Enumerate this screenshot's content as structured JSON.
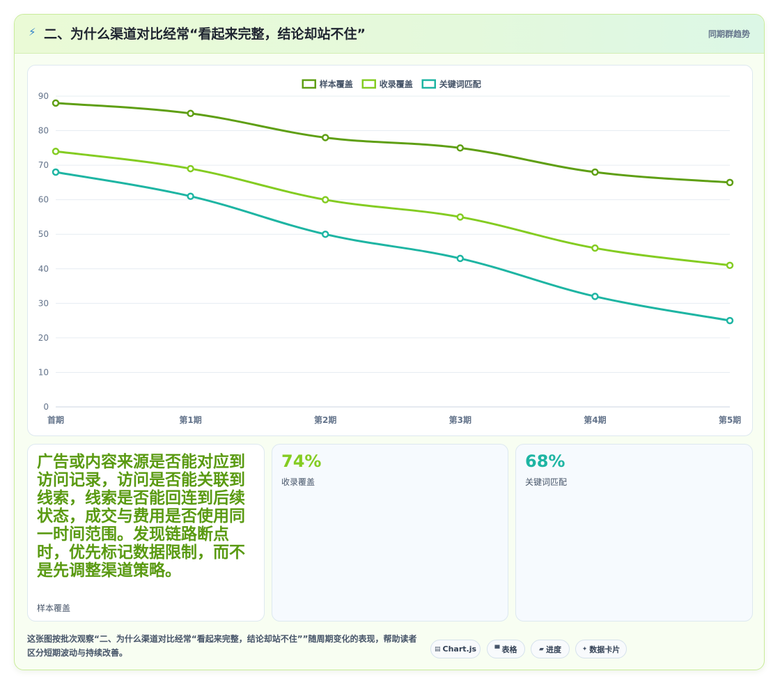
{
  "header": {
    "icon": "lightning-icon",
    "title": "二、为什么渠道对比经常“看起来完整，结论却站不住”",
    "tag": "同期群趋势"
  },
  "chart_data": {
    "type": "line",
    "categories": [
      "首期",
      "第1期",
      "第2期",
      "第3期",
      "第4期",
      "第5期"
    ],
    "series": [
      {
        "name": "样本覆盖",
        "color": "#5f9f14",
        "values": [
          88,
          85,
          78,
          75,
          68,
          65
        ]
      },
      {
        "name": "收录覆盖",
        "color": "#84cc22",
        "values": [
          74,
          69,
          60,
          55,
          46,
          41
        ]
      },
      {
        "name": "关键词匹配",
        "color": "#1eb5a3",
        "values": [
          68,
          61,
          50,
          43,
          32,
          25
        ]
      }
    ],
    "ylim": [
      0,
      90
    ],
    "yticks": [
      0,
      10,
      20,
      30,
      40,
      50,
      60,
      70,
      80,
      90
    ],
    "grid": true,
    "legend": "top-center"
  },
  "cards": [
    {
      "value": "广告或内容来源是否能对应到访问记录，访问是否能关联到线索，线索是否能回连到后续状态，成交与费用是否使用同一时间范围。发现链路断点时，优先标记数据限制，而不是先调整渠道策略。",
      "label": "样本覆盖",
      "color": "#5a9a12"
    },
    {
      "value": "74%",
      "label": "收录覆盖",
      "color": "#84cc22"
    },
    {
      "value": "68%",
      "label": "关键词匹配",
      "color": "#1eb5a3"
    }
  ],
  "footer": {
    "caption": "这张图按批次观察“二、为什么渠道对比经常“看起来完整，结论却站不住””随周期变化的表现，帮助读者区分短期波动与持续改善。",
    "chips": [
      {
        "icon": "chart-icon",
        "glyph": "▤",
        "label": "Chart.js"
      },
      {
        "icon": "table-icon",
        "glyph": "▀",
        "label": "表格"
      },
      {
        "icon": "progress-icon",
        "glyph": "▰",
        "label": "进度"
      },
      {
        "icon": "sparkle-icon",
        "glyph": "✦",
        "label": "数据卡片"
      }
    ]
  }
}
